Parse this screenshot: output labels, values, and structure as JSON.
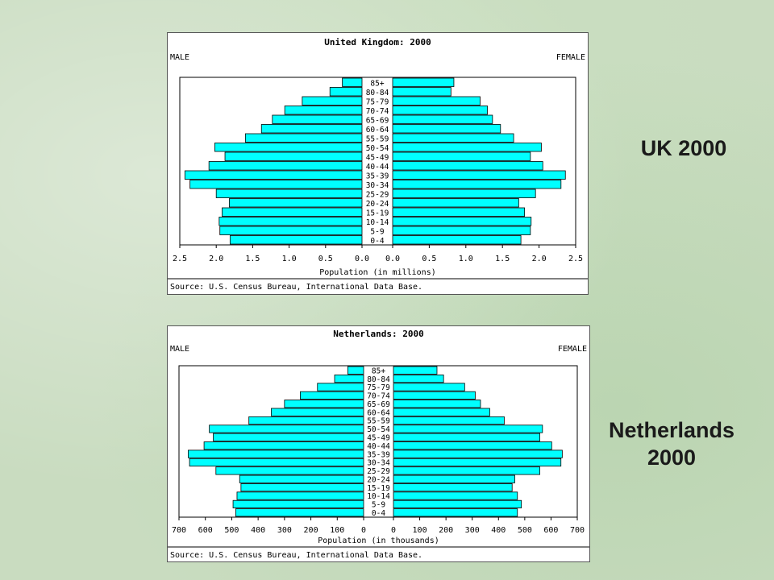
{
  "side_labels": {
    "uk": "UK 2000",
    "nl_line1": "Netherlands",
    "nl_line2": "2000"
  },
  "chart_data": [
    {
      "type": "bar",
      "subtype": "population-pyramid",
      "title": "United Kingdom: 2000",
      "left_label": "MALE",
      "right_label": "FEMALE",
      "xlabel": "Population (in millions)",
      "source": "Source: U.S. Census Bureau, International Data Base.",
      "xlim": [
        0,
        2.5
      ],
      "ticks_left": [
        "2.5",
        "2.0",
        "1.5",
        "1.0",
        "0.5",
        "0.0"
      ],
      "ticks_right": [
        "0.0",
        "0.5",
        "1.0",
        "1.5",
        "2.0",
        "2.5"
      ],
      "categories": [
        "85+",
        "80-84",
        "75-79",
        "70-74",
        "65-69",
        "60-64",
        "55-59",
        "50-54",
        "45-49",
        "40-44",
        "35-39",
        "30-34",
        "25-29",
        "20-24",
        "15-19",
        "10-14",
        "5-9",
        "0-4"
      ],
      "series": [
        {
          "name": "MALE",
          "values": [
            0.27,
            0.44,
            0.82,
            1.06,
            1.23,
            1.38,
            1.6,
            2.02,
            1.88,
            2.1,
            2.43,
            2.36,
            2.0,
            1.82,
            1.92,
            1.96,
            1.95,
            1.81
          ]
        },
        {
          "name": "FEMALE",
          "values": [
            0.84,
            0.8,
            1.2,
            1.3,
            1.37,
            1.48,
            1.66,
            2.04,
            1.89,
            2.06,
            2.37,
            2.31,
            1.96,
            1.73,
            1.81,
            1.9,
            1.89,
            1.76
          ]
        }
      ],
      "bar_color": "#00ffff"
    },
    {
      "type": "bar",
      "subtype": "population-pyramid",
      "title": "Netherlands: 2000",
      "left_label": "MALE",
      "right_label": "FEMALE",
      "xlabel": "Population (in thousands)",
      "source": "Source: U.S. Census Bureau, International Data Base.",
      "xlim": [
        0,
        700
      ],
      "ticks_left": [
        "700",
        "600",
        "500",
        "400",
        "300",
        "200",
        "100",
        "0"
      ],
      "ticks_right": [
        "0",
        "100",
        "200",
        "300",
        "400",
        "500",
        "600",
        "700"
      ],
      "categories": [
        "85+",
        "80-84",
        "75-79",
        "70-74",
        "65-69",
        "60-64",
        "55-59",
        "50-54",
        "45-49",
        "40-44",
        "35-39",
        "30-34",
        "25-29",
        "20-24",
        "15-19",
        "10-14",
        "5-9",
        "0-4"
      ],
      "series": [
        {
          "name": "MALE",
          "values": [
            60,
            110,
            175,
            240,
            300,
            350,
            435,
            585,
            570,
            605,
            665,
            660,
            560,
            470,
            465,
            480,
            495,
            485
          ]
        },
        {
          "name": "FEMALE",
          "values": [
            165,
            190,
            270,
            310,
            330,
            365,
            420,
            565,
            555,
            600,
            640,
            635,
            555,
            460,
            450,
            470,
            485,
            470
          ]
        }
      ],
      "bar_color": "#00ffff"
    }
  ]
}
